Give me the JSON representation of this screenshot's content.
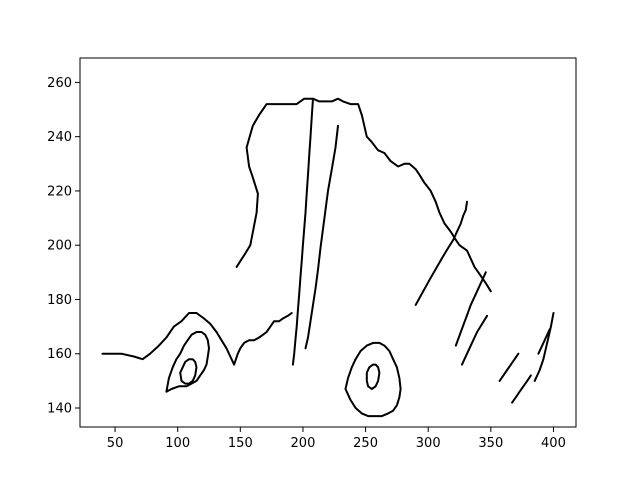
{
  "chart_data": {
    "type": "line",
    "title": "",
    "xlabel": "",
    "ylabel": "",
    "xlim": [
      22,
      418
    ],
    "ylim": [
      133,
      269
    ],
    "xticks": [
      50,
      100,
      150,
      200,
      250,
      300,
      350,
      400
    ],
    "yticks": [
      140,
      160,
      180,
      200,
      220,
      240,
      260
    ],
    "grid": false,
    "legend": "none",
    "line_color": "#000000",
    "series": [
      {
        "points": [
          [
            147,
            192
          ],
          [
            154,
            197
          ],
          [
            158,
            200
          ],
          [
            163,
            212
          ],
          [
            164,
            219
          ],
          [
            160,
            225
          ],
          [
            157,
            229
          ],
          [
            155,
            236
          ],
          [
            160,
            244
          ],
          [
            165,
            248
          ],
          [
            171,
            252
          ],
          [
            177,
            252
          ],
          [
            183,
            252
          ],
          [
            190,
            252
          ],
          [
            195,
            252
          ],
          [
            201,
            254
          ],
          [
            208,
            254
          ],
          [
            213,
            253
          ],
          [
            218,
            253
          ],
          [
            223,
            253
          ],
          [
            228,
            254
          ],
          [
            232,
            253
          ],
          [
            238,
            252
          ],
          [
            244,
            252
          ],
          [
            247,
            248
          ],
          [
            249,
            244
          ],
          [
            251,
            240
          ],
          [
            255,
            238
          ],
          [
            260,
            235
          ],
          [
            265,
            234
          ],
          [
            270,
            231
          ],
          [
            276,
            229
          ],
          [
            281,
            230
          ],
          [
            285,
            230
          ],
          [
            290,
            228
          ],
          [
            293,
            226
          ],
          [
            297,
            223
          ],
          [
            302,
            220
          ],
          [
            306,
            216
          ],
          [
            309,
            212
          ],
          [
            313,
            208
          ],
          [
            318,
            205
          ],
          [
            322,
            202
          ],
          [
            325,
            200
          ],
          [
            328,
            199
          ],
          [
            331,
            198
          ],
          [
            334,
            195
          ],
          [
            337,
            192
          ],
          [
            340,
            190
          ],
          [
            343,
            188
          ],
          [
            346,
            186
          ],
          [
            350,
            183
          ]
        ]
      },
      {
        "points": [
          [
            228,
            244
          ],
          [
            226,
            236
          ],
          [
            223,
            228
          ],
          [
            220,
            220
          ],
          [
            218,
            213
          ],
          [
            216,
            206
          ],
          [
            214,
            199
          ],
          [
            212,
            191
          ],
          [
            210,
            184
          ],
          [
            208,
            178
          ],
          [
            206,
            172
          ],
          [
            204,
            166
          ],
          [
            202,
            162
          ]
        ]
      },
      {
        "points": [
          [
            208,
            254
          ],
          [
            207,
            247
          ],
          [
            206,
            240
          ],
          [
            205,
            233
          ],
          [
            204,
            226
          ],
          [
            203,
            219
          ],
          [
            202,
            212
          ],
          [
            201,
            206
          ],
          [
            200,
            200
          ],
          [
            199,
            194
          ],
          [
            198,
            188
          ],
          [
            197,
            182
          ],
          [
            196,
            176
          ],
          [
            195,
            170
          ],
          [
            194,
            165
          ],
          [
            193,
            160
          ],
          [
            192,
            156
          ]
        ]
      },
      {
        "points": [
          [
            40,
            160
          ],
          [
            55,
            160
          ],
          [
            65,
            159
          ],
          [
            72,
            158
          ],
          [
            78,
            160
          ],
          [
            85,
            163
          ],
          [
            91,
            166
          ],
          [
            97,
            170
          ],
          [
            103,
            172
          ],
          [
            109,
            175
          ],
          [
            115,
            175
          ],
          [
            121,
            173
          ],
          [
            126,
            171
          ],
          [
            131,
            168
          ],
          [
            135,
            165
          ],
          [
            139,
            162
          ],
          [
            142,
            159
          ],
          [
            145,
            156
          ],
          [
            148,
            160
          ],
          [
            150,
            162
          ],
          [
            153,
            164
          ],
          [
            157,
            165
          ],
          [
            161,
            165
          ],
          [
            165,
            166
          ],
          [
            168,
            167
          ],
          [
            171,
            168
          ],
          [
            174,
            170
          ],
          [
            177,
            172
          ],
          [
            181,
            172
          ],
          [
            184,
            173
          ],
          [
            188,
            174
          ],
          [
            191,
            175
          ]
        ]
      },
      {
        "points": [
          [
            91,
            146
          ],
          [
            95,
            147
          ],
          [
            101,
            148
          ],
          [
            107,
            148
          ],
          [
            111,
            149
          ],
          [
            115,
            150
          ],
          [
            118,
            152
          ],
          [
            121,
            154
          ],
          [
            123,
            156
          ],
          [
            124,
            159
          ],
          [
            125,
            162
          ],
          [
            124,
            165
          ],
          [
            122,
            167
          ],
          [
            119,
            168
          ],
          [
            115,
            168
          ],
          [
            111,
            167
          ],
          [
            108,
            165
          ],
          [
            105,
            163
          ],
          [
            102,
            160
          ],
          [
            99,
            158
          ],
          [
            96,
            155
          ],
          [
            93,
            151
          ],
          [
            91,
            146
          ]
        ]
      },
      {
        "points": [
          [
            234,
            147
          ],
          [
            236,
            151
          ],
          [
            239,
            155
          ],
          [
            242,
            158
          ],
          [
            246,
            161
          ],
          [
            251,
            163
          ],
          [
            256,
            164
          ],
          [
            261,
            164
          ],
          [
            265,
            163
          ],
          [
            269,
            161
          ],
          [
            272,
            158
          ],
          [
            275,
            155
          ],
          [
            277,
            151
          ],
          [
            278,
            147
          ],
          [
            277,
            144
          ],
          [
            275,
            141
          ],
          [
            272,
            139
          ],
          [
            268,
            138
          ],
          [
            263,
            137
          ],
          [
            258,
            137
          ],
          [
            252,
            137
          ],
          [
            247,
            138
          ],
          [
            242,
            140
          ],
          [
            238,
            143
          ],
          [
            234,
            147
          ]
        ]
      },
      {
        "points": [
          [
            102,
            153
          ],
          [
            104,
            155
          ],
          [
            106,
            157
          ],
          [
            109,
            158
          ],
          [
            112,
            158
          ],
          [
            114,
            157
          ],
          [
            115,
            155
          ],
          [
            114,
            152
          ],
          [
            112,
            150
          ],
          [
            109,
            149
          ],
          [
            106,
            149
          ],
          [
            103,
            150
          ],
          [
            102,
            153
          ]
        ]
      },
      {
        "points": [
          [
            251,
            153
          ],
          [
            253,
            155
          ],
          [
            256,
            156
          ],
          [
            258,
            156
          ],
          [
            260,
            155
          ],
          [
            261,
            153
          ],
          [
            260,
            150
          ],
          [
            258,
            148
          ],
          [
            255,
            147
          ],
          [
            252,
            148
          ],
          [
            251,
            150
          ],
          [
            251,
            153
          ]
        ]
      },
      {
        "points": [
          [
            290,
            178
          ],
          [
            296,
            183
          ],
          [
            302,
            188
          ],
          [
            307,
            192
          ],
          [
            312,
            196
          ],
          [
            316,
            199
          ],
          [
            320,
            202
          ],
          [
            323,
            205
          ],
          [
            326,
            208
          ],
          [
            328,
            211
          ],
          [
            330,
            213
          ],
          [
            331,
            216
          ]
        ]
      },
      {
        "points": [
          [
            322,
            163
          ],
          [
            326,
            168
          ],
          [
            330,
            173
          ],
          [
            334,
            178
          ],
          [
            338,
            182
          ],
          [
            342,
            186
          ],
          [
            346,
            190
          ]
        ]
      },
      {
        "points": [
          [
            327,
            156
          ],
          [
            331,
            160
          ],
          [
            335,
            164
          ],
          [
            339,
            168
          ],
          [
            343,
            171
          ],
          [
            347,
            174
          ]
        ]
      },
      {
        "points": [
          [
            357,
            150
          ],
          [
            360,
            152
          ],
          [
            363,
            154
          ],
          [
            366,
            156
          ],
          [
            369,
            158
          ],
          [
            372,
            160
          ]
        ]
      },
      {
        "points": [
          [
            367,
            142
          ],
          [
            370,
            144
          ],
          [
            373,
            146
          ],
          [
            376,
            148
          ],
          [
            379,
            150
          ],
          [
            382,
            152
          ]
        ]
      },
      {
        "points": [
          [
            385,
            150
          ],
          [
            389,
            154
          ],
          [
            392,
            158
          ],
          [
            394,
            162
          ],
          [
            396,
            166
          ],
          [
            398,
            170
          ],
          [
            400,
            175
          ]
        ]
      },
      {
        "points": [
          [
            388,
            160
          ],
          [
            391,
            163
          ],
          [
            394,
            166
          ],
          [
            397,
            169
          ]
        ]
      }
    ]
  }
}
